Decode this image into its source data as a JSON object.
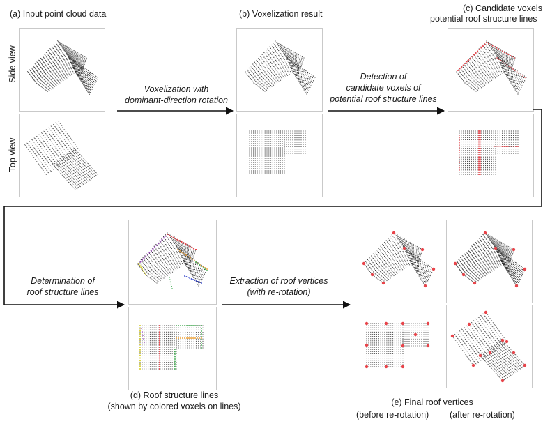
{
  "panel_a": {
    "title": "(a) Input point cloud data"
  },
  "panel_b": {
    "title": "(b) Voxelization result"
  },
  "panel_c": {
    "title_line1": "(c) Candidate voxels of",
    "title_line2": "potential roof structure lines"
  },
  "panel_d": {
    "caption_line1": "(d) Roof structure lines",
    "caption_line2": "(shown by colored voxels on lines)"
  },
  "panel_e": {
    "caption": "(e) Final roof vertices",
    "left_label": "(before re-rotation)",
    "right_label": "(after re-rotation)"
  },
  "row_labels": {
    "side": "Side view",
    "top": "Top view"
  },
  "steps": {
    "voxelization_line1": "Voxelization with",
    "voxelization_line2": "dominant-direction rotation",
    "detection_line1": "Detection of",
    "detection_line2": "candidate voxels of",
    "detection_line3": "potential roof structure lines",
    "determination_line1": "Determination  of",
    "determination_line2": "roof structure lines",
    "extraction_line1": "Extraction of roof vertices",
    "extraction_line2": "(with re-rotation)"
  },
  "colors": {
    "highlight": "#e8444a",
    "points": "#333333",
    "orange": "#f0a030",
    "green": "#3aa84a",
    "blue": "#2a3cc8",
    "yellow": "#d8d020",
    "purple": "#9a40c0"
  }
}
